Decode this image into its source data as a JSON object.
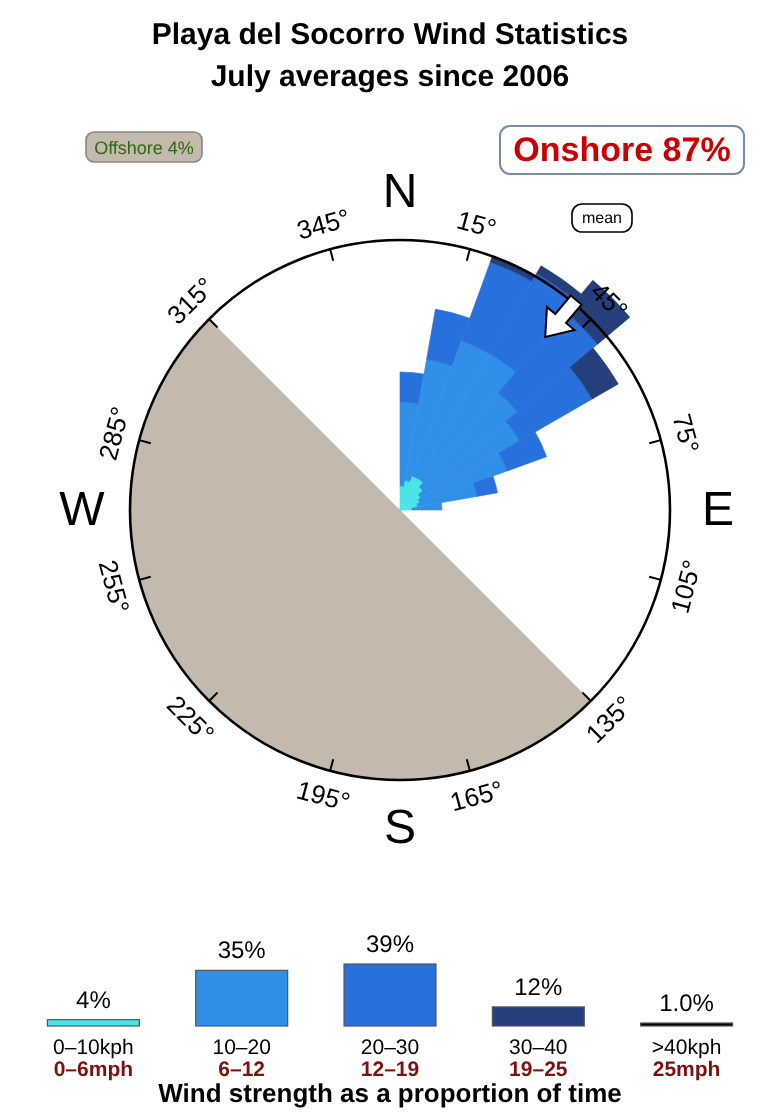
{
  "chart_data": [
    {
      "type": "other",
      "title": "Playa del Socorro Wind Statistics",
      "subtitle": "July averages since 2006",
      "annotations": [
        "Offshore 4%",
        "Onshore 87%",
        "mean",
        "N",
        "15°",
        "45°",
        "75°",
        "E",
        "105°",
        "135°",
        "165°",
        "S",
        "195°",
        "225°",
        "255°",
        "W",
        "285°",
        "315°",
        "345°"
      ]
    },
    {
      "type": "bar",
      "xlabel": "Wind strength as a proportion of time",
      "categories": [
        "0–10kph\n0–6mph",
        "10–20\n6–12",
        "20–30\n12–19",
        "30–40\n19–25",
        ">40kph\n25mph"
      ],
      "values": [
        4,
        35,
        39,
        12,
        1.0
      ],
      "value_labels": [
        "4%",
        "35%",
        "39%",
        "12%",
        "1.0%"
      ],
      "colors": [
        "#48e4e8",
        "#3090e8",
        "#2870dc",
        "#243f7c",
        "#000000"
      ]
    }
  ]
}
